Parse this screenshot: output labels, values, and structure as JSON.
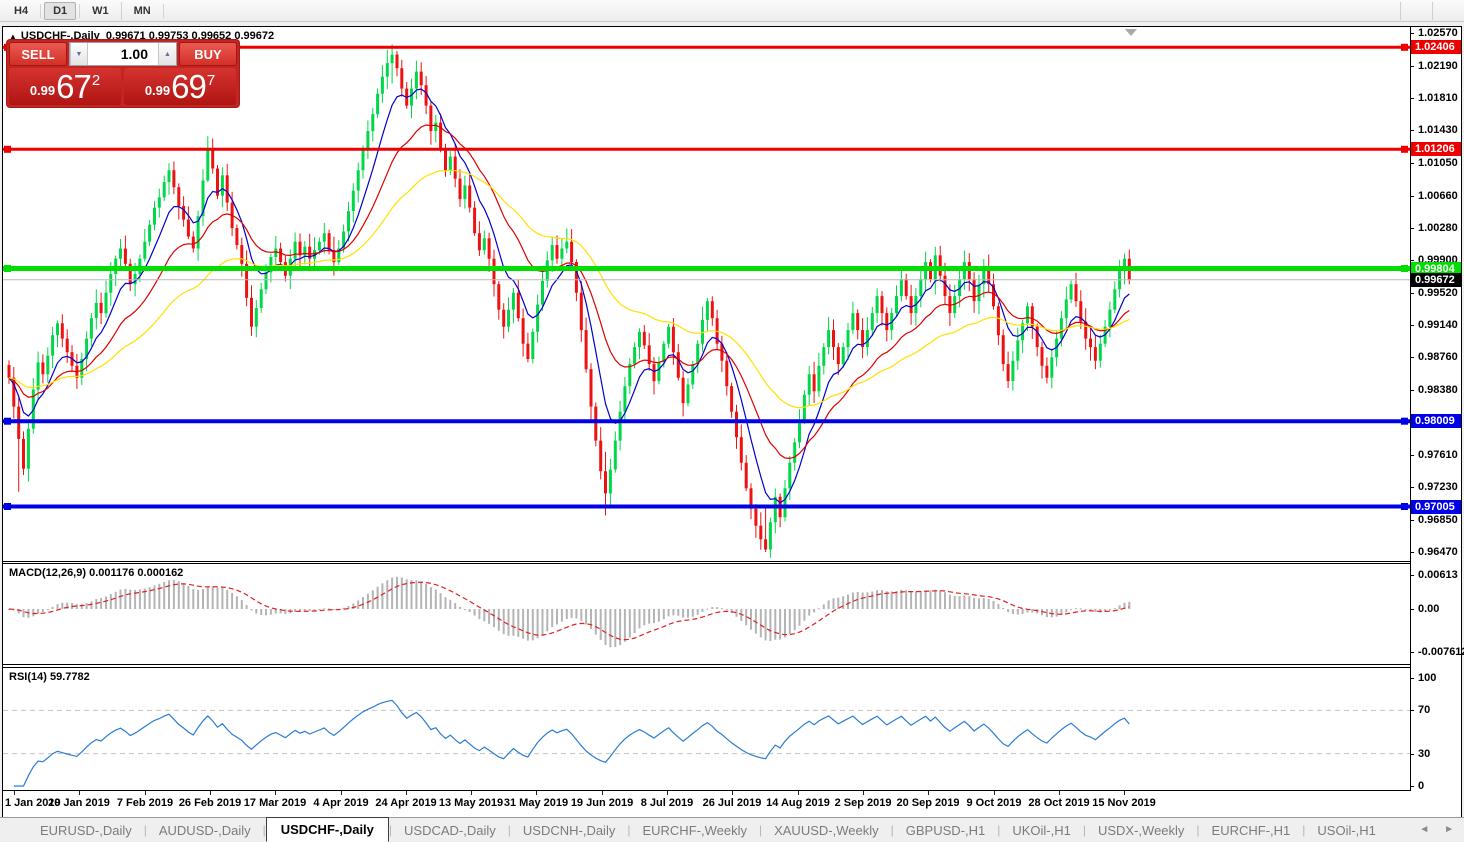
{
  "toolbar": {
    "timeframes": [
      {
        "label": "H4",
        "active": false
      },
      {
        "label": "D1",
        "active": true
      },
      {
        "label": "W1",
        "active": false
      },
      {
        "label": "MN",
        "active": false
      }
    ]
  },
  "window": {
    "title": {
      "collapse_arrow": "▲",
      "symbol": "USDCHF-,Daily",
      "ohlc": "0.99671 0.99753 0.99652 0.99672"
    },
    "trade_panel": {
      "sell_label": "SELL",
      "buy_label": "BUY",
      "volume_value": "1.00",
      "volume_down_arrow": "▼",
      "volume_up_arrow": "▲",
      "sell_price": {
        "small": "0.99",
        "big": "67",
        "sup": "2"
      },
      "buy_price": {
        "small": "0.99",
        "big": "69",
        "sup": "7"
      }
    }
  },
  "chart_data": [
    {
      "type": "candlestick",
      "symbol": "USDCHF-",
      "timeframe": "Daily",
      "title_ohlc": "0.99671 0.99753 0.99652 0.99672",
      "up_color": "#00d84a",
      "down_color": "#ee1111",
      "y_axis": {
        "ticks": [
          "1.02570",
          "1.02190",
          "1.01810",
          "1.01430",
          "1.01050",
          "1.00660",
          "1.00280",
          "0.99900",
          "0.99520",
          "0.99140",
          "0.98760",
          "0.98380",
          "0.97610",
          "0.97230",
          "0.96850",
          "0.96470"
        ],
        "min": 0.9638,
        "max": 1.0262
      },
      "x_axis": {
        "labels": [
          "1 Jan 2019",
          "20 Jan 2019",
          "7 Feb 2019",
          "26 Feb 2019",
          "17 Mar 2019",
          "4 Apr 2019",
          "24 Apr 2019",
          "13 May 2019",
          "31 May 2019",
          "19 Jun 2019",
          "8 Jul 2019",
          "26 Jul 2019",
          "14 Aug 2019",
          "2 Sep 2019",
          "20 Sep 2019",
          "9 Oct 2019",
          "28 Oct 2019",
          "15 Nov 2019"
        ]
      },
      "h_lines": [
        {
          "value": 1.02406,
          "label": "1.02406",
          "color": "#ee0000",
          "width": 3
        },
        {
          "value": 1.01206,
          "label": "1.01206",
          "color": "#ee0000",
          "width": 3
        },
        {
          "value": 0.99804,
          "label": "0.99804",
          "color": "#00dd00",
          "width": 5
        },
        {
          "value": 0.98009,
          "label": "0.98009",
          "color": "#0000e6",
          "width": 4
        },
        {
          "value": 0.97005,
          "label": "0.97005",
          "color": "#0000e6",
          "width": 4
        }
      ],
      "current_price": {
        "value": 0.99672,
        "label": "0.99672",
        "line_color": "#b8b8b8",
        "badge_color": "#000000"
      },
      "moving_averages": [
        {
          "period": 8,
          "color": "#0000cc"
        },
        {
          "period": 20,
          "color": "#dd0000"
        },
        {
          "period": 45,
          "color": "#ffe000"
        }
      ],
      "closes": [
        0.9852,
        0.9818,
        0.978,
        0.9745,
        0.9792,
        0.9838,
        0.987,
        0.9856,
        0.9878,
        0.9902,
        0.9916,
        0.9898,
        0.9882,
        0.9866,
        0.9852,
        0.9874,
        0.9898,
        0.9922,
        0.994,
        0.9928,
        0.9952,
        0.9974,
        0.9992,
        1.0004,
        0.9986,
        0.9962,
        0.9974,
        0.9992,
        1.0012,
        1.0032,
        1.0052,
        1.0064,
        1.0082,
        1.0096,
        1.0076,
        1.0054,
        1.0038,
        1.0018,
        1.0004,
        1.0042,
        1.0084,
        1.0122,
        1.0098,
        1.0066,
        1.009,
        1.0058,
        1.0028,
        1.0008,
        0.9986,
        0.9946,
        0.9912,
        0.9934,
        0.9956,
        0.9976,
        0.9994,
        1.0004,
        0.9988,
        0.9972,
        0.9992,
        1.0012,
        0.9996,
        1.0006,
        0.9992,
        1.0002,
        1.0012,
        1.0022,
        1.0002,
        0.9988,
        1.0004,
        1.0024,
        1.0048,
        1.0072,
        1.0096,
        1.0122,
        1.0142,
        1.0162,
        1.0186,
        1.0206,
        1.0222,
        1.0232,
        1.0216,
        1.0192,
        1.0172,
        1.0192,
        1.0212,
        1.0196,
        1.0172,
        1.0142,
        1.0152,
        1.0122,
        1.0096,
        1.0112,
        1.0086,
        1.0062,
        1.0078,
        1.0052,
        1.0022,
        1.0002,
        1.0016,
        0.9992,
        0.9962,
        0.9932,
        0.9912,
        0.9932,
        0.9952,
        0.9922,
        0.9892,
        0.9874,
        0.9906,
        0.9938,
        0.9966,
        0.999,
        1.0008,
        0.9992,
        1.0004,
        1.0012,
        0.9988,
        0.9952,
        0.9908,
        0.9862,
        0.9818,
        0.9778,
        0.9742,
        0.9716,
        0.9744,
        0.9778,
        0.9812,
        0.9842,
        0.9868,
        0.9888,
        0.9906,
        0.989,
        0.9868,
        0.9848,
        0.987,
        0.9892,
        0.9912,
        0.9882,
        0.9852,
        0.9822,
        0.9844,
        0.9868,
        0.9892,
        0.992,
        0.9942,
        0.9922,
        0.9892,
        0.9872,
        0.9842,
        0.9812,
        0.9782,
        0.9752,
        0.9722,
        0.9698,
        0.9678,
        0.9662,
        0.965,
        0.9682,
        0.9712,
        0.9688,
        0.9722,
        0.9752,
        0.9776,
        0.9802,
        0.9832,
        0.9856,
        0.9836,
        0.9866,
        0.9888,
        0.9908,
        0.9888,
        0.9868,
        0.9888,
        0.9908,
        0.9928,
        0.9908,
        0.9888,
        0.9908,
        0.9928,
        0.9948,
        0.9928,
        0.9908,
        0.9928,
        0.9948,
        0.9968,
        0.9948,
        0.9928,
        0.9948,
        0.9968,
        0.9988,
        0.9968,
        0.9996,
        0.9972,
        0.9948,
        0.9928,
        0.9948,
        0.9968,
        0.9988,
        0.9968,
        0.9942,
        0.9962,
        0.9982,
        0.9962,
        0.9936,
        0.9902,
        0.9868,
        0.9848,
        0.9872,
        0.9896,
        0.9916,
        0.9936,
        0.9912,
        0.9888,
        0.9866,
        0.9852,
        0.9876,
        0.9898,
        0.9922,
        0.9944,
        0.9962,
        0.9942,
        0.9918,
        0.9898,
        0.9888,
        0.9872,
        0.9892,
        0.9912,
        0.9932,
        0.9956,
        0.9978,
        0.9992,
        0.99672
      ],
      "open_rule": "previous_close",
      "wick_overrides": {
        "2": [
          0.983,
          0.9718
        ],
        "41": [
          1.0136,
          1.0082
        ],
        "79": [
          1.0244,
          1.0198
        ],
        "123": [
          0.9765,
          0.969
        ],
        "156": [
          0.9702,
          0.9647
        ],
        "191": [
          1.0006,
          0.995
        ],
        "230": [
          0.9998,
          0.9962
        ]
      }
    },
    {
      "type": "macd_histogram",
      "label": "MACD(12,26,9)",
      "values_label": "0.001176 0.000162",
      "params": {
        "fast": 12,
        "slow": 26,
        "signal": 9
      },
      "axis_labels": [
        {
          "text": "0.00613",
          "value": 0.00613
        },
        {
          "text": "0.00",
          "value": 0.0
        },
        {
          "text": "-0.007612",
          "value": -0.007612
        }
      ],
      "histogram_color": "#b4b4b4",
      "signal_color": "#e02020",
      "source": "closes of series 0"
    },
    {
      "type": "line",
      "label": "RSI(14)",
      "value_label": "59.7782",
      "period": 14,
      "levels": [
        70,
        30
      ],
      "axis_labels": [
        {
          "text": "100",
          "value": 100
        },
        {
          "text": "70",
          "value": 70
        },
        {
          "text": "30",
          "value": 30
        },
        {
          "text": "0",
          "value": 0
        }
      ],
      "line_color": "#2b7cd3",
      "level_color": "#c4c4c4",
      "source": "closes of series 0"
    }
  ],
  "tabs": {
    "items": [
      "EURUSD-,Daily",
      "AUDUSD-,Daily",
      "USDCHF-,Daily",
      "USDCAD-,Daily",
      "USDCNH-,Daily",
      "EURCHF-,Weekly",
      "XAUUSD-,Weekly",
      "GBPUSD-,H1",
      "UKOil-,H1",
      "USDX-,Weekly",
      "EURCHF-,H1",
      "USOil-,H1"
    ],
    "active": "USDCHF-,Daily",
    "scroll_left_arrow": "◄",
    "scroll_right_arrow": "►"
  }
}
